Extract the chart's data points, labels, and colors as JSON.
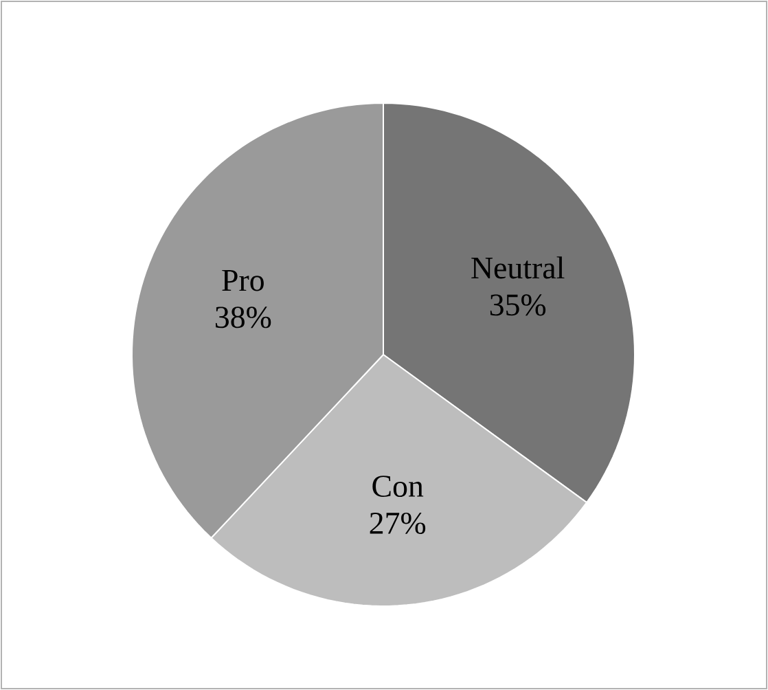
{
  "chart_data": {
    "type": "pie",
    "categories": [
      "Neutral",
      "Con",
      "Pro"
    ],
    "values": [
      35,
      27,
      38
    ],
    "colors": [
      "#757575",
      "#bdbdbd",
      "#9a9a9a"
    ],
    "value_labels": [
      "35%",
      "27%",
      "38%"
    ]
  }
}
